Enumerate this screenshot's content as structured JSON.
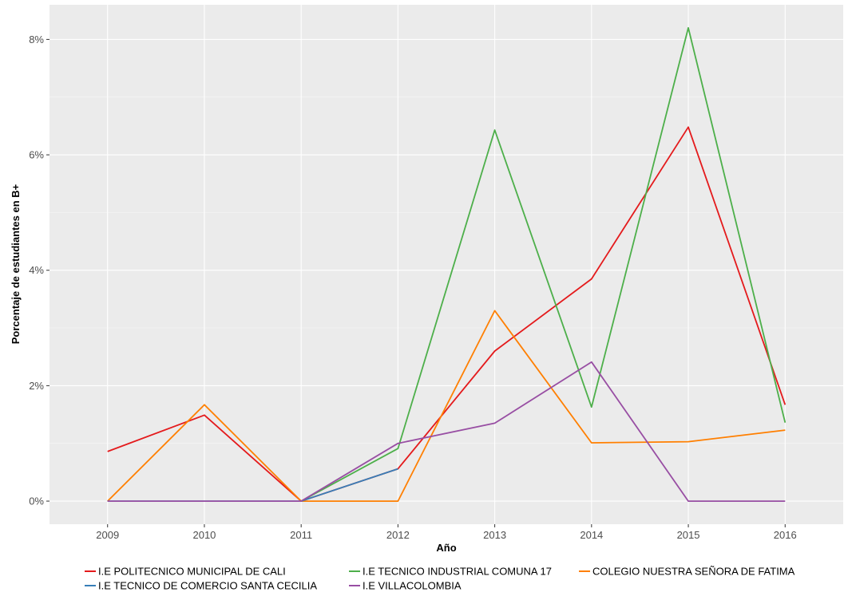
{
  "chart_data": {
    "type": "line",
    "title": "",
    "xlabel": "Año",
    "ylabel": "Porcentaje de estudiantes en B+",
    "x": [
      2009,
      2010,
      2011,
      2012,
      2013,
      2014,
      2015,
      2016
    ],
    "x_tick_labels": [
      "2009",
      "2010",
      "2011",
      "2012",
      "2013",
      "2014",
      "2015",
      "2016"
    ],
    "xlim": [
      2008.4,
      2016.6
    ],
    "ylim": [
      -0.4,
      8.6
    ],
    "y_ticks": [
      0,
      2,
      4,
      6,
      8
    ],
    "y_tick_labels": [
      "0%",
      "2%",
      "4%",
      "6%",
      "8%"
    ],
    "grid": true,
    "legend_position": "bottom",
    "series": [
      {
        "name": "I.E POLITECNICO MUNICIPAL DE CALI",
        "color": "#e41a1c",
        "values": [
          0.86,
          1.49,
          0.0,
          0.56,
          2.6,
          3.85,
          6.48,
          1.67
        ]
      },
      {
        "name": "I.E TECNICO INDUSTRIAL COMUNA 17",
        "color": "#4daf4a",
        "values": [
          null,
          null,
          0.0,
          0.91,
          6.43,
          1.63,
          8.2,
          1.36
        ]
      },
      {
        "name": "COLEGIO NUESTRA SEÑORA DE FATIMA",
        "color": "#ff7f00",
        "values": [
          0.0,
          1.67,
          0.0,
          0.0,
          3.3,
          1.01,
          1.03,
          1.23
        ]
      },
      {
        "name": "I.E TECNICO DE COMERCIO SANTA CECILIA",
        "color": "#377eb8",
        "values": [
          0.0,
          0.0,
          0.0,
          0.56,
          null,
          null,
          null,
          null
        ]
      },
      {
        "name": "I.E VILLACOLOMBIA",
        "color": "#984ea3",
        "values": [
          0.0,
          0.0,
          0.0,
          1.0,
          1.35,
          2.41,
          0.0,
          0.0
        ]
      }
    ]
  }
}
